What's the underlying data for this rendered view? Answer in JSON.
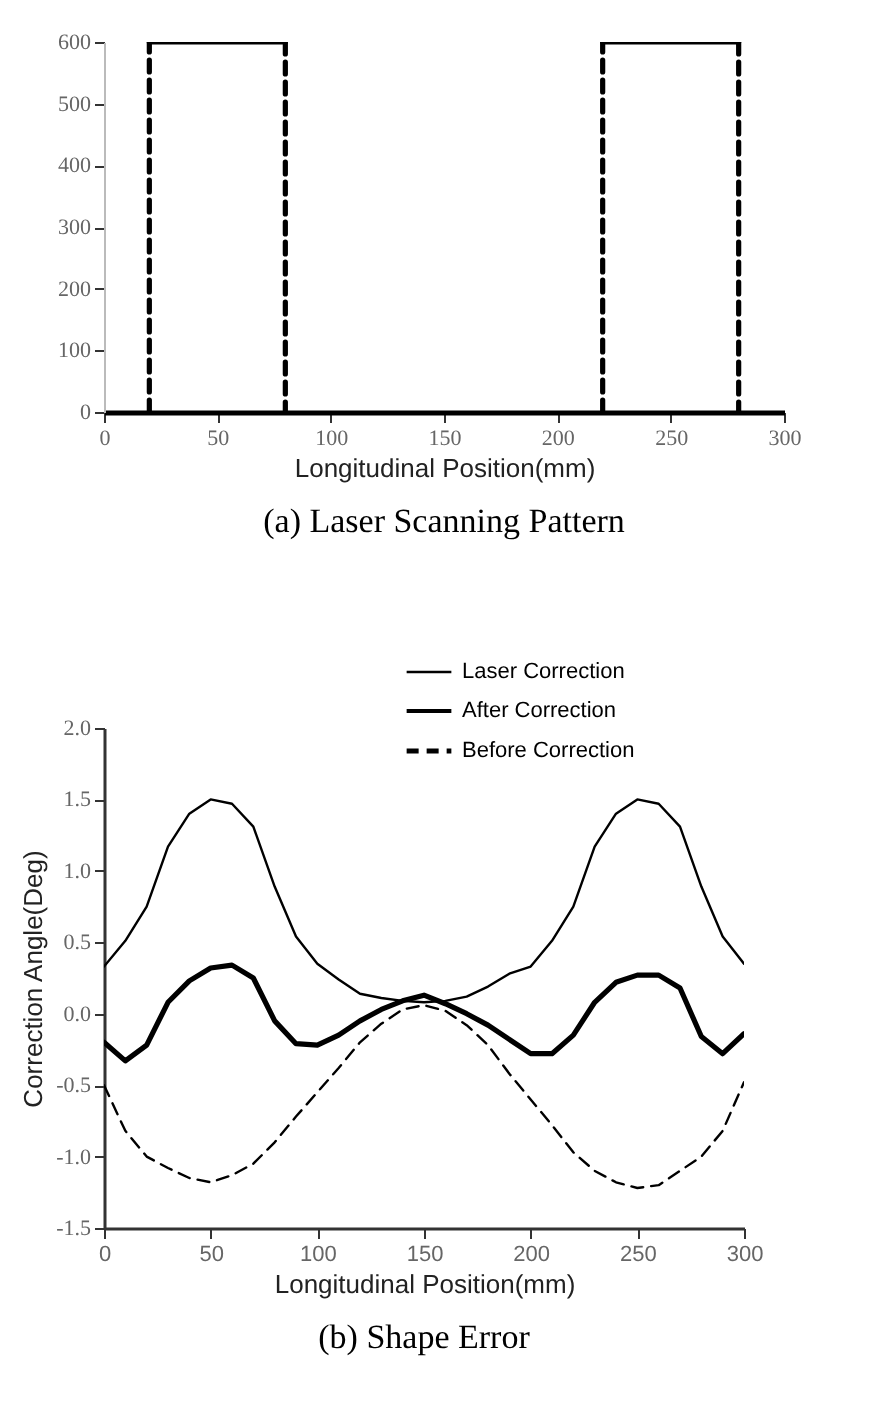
{
  "chart_data": [
    {
      "type": "line",
      "title": "(a) Laser Scanning Pattern",
      "xlabel": "Longitudinal Position(mm)",
      "xlim": [
        0,
        300
      ],
      "xticks": [
        0,
        50,
        100,
        150,
        200,
        250,
        300
      ],
      "ylim": [
        0,
        600
      ],
      "yticks": [
        0,
        100,
        200,
        300,
        400,
        500,
        600
      ],
      "grid": false,
      "legend": false,
      "series": [
        {
          "color": "#000000",
          "line_style": "solid",
          "x": [
            20,
            80,
            150,
            220,
            280
          ],
          "values": [
            600,
            600,
            null,
            600,
            600
          ]
        },
        {
          "color": "#000000",
          "line_style": "dashed",
          "x": [
            20,
            20,
            50,
            80,
            80,
            150,
            220,
            220,
            250,
            280,
            280
          ],
          "values": [
            0,
            600,
            null,
            600,
            0,
            null,
            0,
            600,
            null,
            600,
            0
          ]
        }
      ]
    },
    {
      "type": "line",
      "title": "(b) Shape Error",
      "xlabel": "Longitudinal Position(mm)",
      "ylabel": "Correction Angle(Deg)",
      "xlim": [
        0,
        300
      ],
      "xticks": [
        0,
        50,
        100,
        150,
        200,
        250,
        300
      ],
      "ylim": [
        -1.5,
        2.0
      ],
      "yticks": [
        {
          "value": -1.5,
          "label": "-1.5"
        },
        {
          "value": -1.0,
          "label": "-1.0"
        },
        {
          "value": -0.5,
          "label": "-0.5"
        },
        {
          "value": 0,
          "label": "0.0"
        },
        {
          "value": 0.5,
          "label": "0.5"
        },
        {
          "value": 1.0,
          "label": "1.0"
        },
        {
          "value": 1.5,
          "label": "1.5"
        },
        {
          "value": 2.0,
          "label": "2.0"
        }
      ],
      "grid": false,
      "legend": "top right",
      "x": [
        0,
        10,
        20,
        30,
        40,
        50,
        60,
        70,
        80,
        90,
        100,
        110,
        120,
        130,
        140,
        150,
        160,
        170,
        180,
        190,
        200,
        210,
        220,
        230,
        240,
        250,
        260,
        270,
        280,
        290,
        300
      ],
      "series": [
        {
          "name": "Laser Correction",
          "color": "#000000",
          "line_style": "solid",
          "values": [
            0.33,
            0.51,
            0.75,
            1.17,
            1.4,
            1.5,
            1.47,
            1.31,
            0.89,
            0.54,
            0.35,
            0.24,
            0.14,
            0.11,
            0.09,
            0.08,
            0.09,
            0.12,
            0.19,
            0.28,
            0.33,
            0.51,
            0.75,
            1.17,
            1.4,
            1.5,
            1.47,
            1.31,
            0.89,
            0.54,
            0.35
          ]
        },
        {
          "name": "After Correction",
          "color": "#000000",
          "line_style": "solid",
          "values": [
            -0.2,
            -0.33,
            -0.22,
            0.08,
            0.23,
            0.32,
            0.34,
            0.25,
            -0.05,
            -0.21,
            -0.22,
            -0.15,
            -0.05,
            0.03,
            0.09,
            0.13,
            0.07,
            0.0,
            -0.08,
            -0.18,
            -0.28,
            -0.28,
            -0.15,
            0.08,
            0.22,
            0.27,
            0.27,
            0.18,
            -0.16,
            -0.28,
            -0.14
          ]
        },
        {
          "name": "Before Correction",
          "color": "#000000",
          "line_style": "dashed",
          "values": [
            -0.5,
            -0.82,
            -1.0,
            -1.08,
            -1.15,
            -1.18,
            -1.13,
            -1.05,
            -0.9,
            -0.72,
            -0.55,
            -0.38,
            -0.2,
            -0.07,
            0.03,
            0.06,
            0.02,
            -0.08,
            -0.22,
            -0.42,
            -0.6,
            -0.78,
            -0.97,
            -1.1,
            -1.18,
            -1.22,
            -1.2,
            -1.1,
            -1.0,
            -0.82,
            -0.48
          ]
        }
      ]
    }
  ]
}
